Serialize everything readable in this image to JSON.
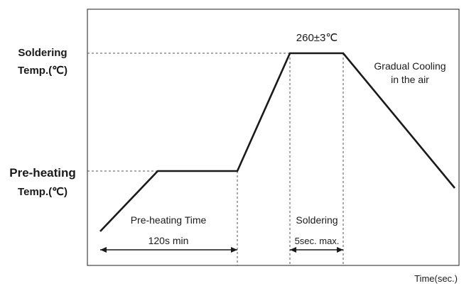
{
  "diagram": {
    "y_labels": {
      "soldering_line1": "Soldering",
      "soldering_line2": "Temp.(℃)",
      "preheat_line1": "Pre-heating",
      "preheat_line2": "Temp.(℃)"
    },
    "peak_label": "260±3℃",
    "cooling_line1": "Gradual Cooling",
    "cooling_line2": "in the air",
    "preheat_time_line1": "Pre-heating Time",
    "preheat_time_line2": "120s min",
    "soldering_time_line1": "Soldering",
    "soldering_time_line2": "5sec. max.",
    "x_axis_label": "Time(sec.)"
  },
  "colors": {
    "line": "#1a1a1a",
    "frame": "#444444",
    "dashed": "#555555"
  }
}
